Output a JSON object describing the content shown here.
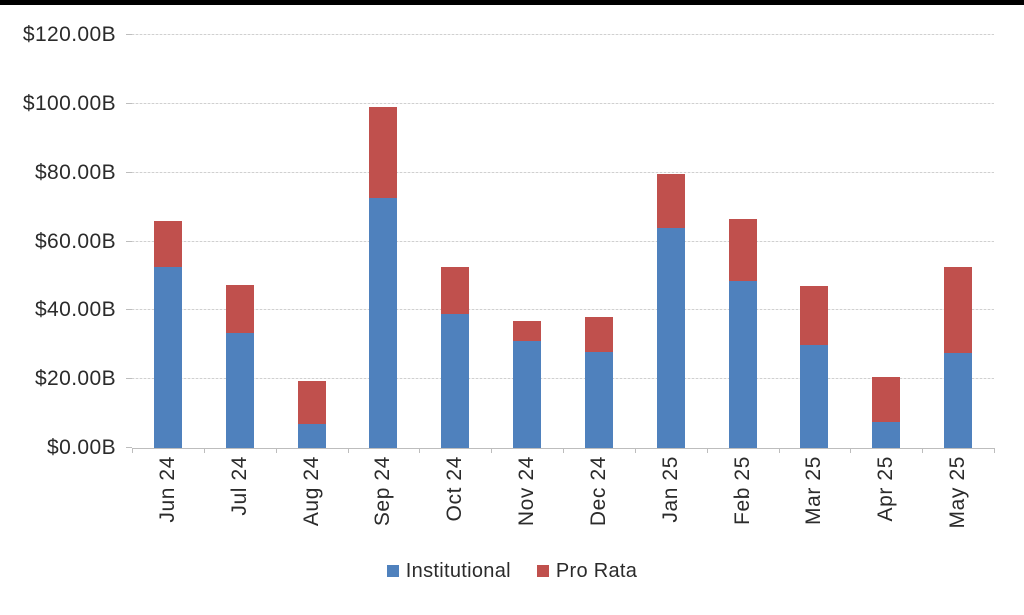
{
  "page": {
    "background": "#ffffff",
    "top_bar_color": "#000000"
  },
  "chart_data": {
    "type": "bar",
    "stacked": true,
    "title": "",
    "xlabel": "",
    "ylabel": "",
    "categories": [
      "Jun 24",
      "Jul 24",
      "Aug 24",
      "Sep 24",
      "Oct 24",
      "Nov 24",
      "Dec 24",
      "Jan 25",
      "Feb 25",
      "Mar 25",
      "Apr 25",
      "May 25"
    ],
    "series": [
      {
        "name": "Institutional",
        "color": "#4F81BD",
        "values": [
          52.5,
          33.5,
          7,
          72.5,
          39,
          31,
          28,
          64,
          48.5,
          30,
          7.5,
          27.5
        ]
      },
      {
        "name": "Pro Rata",
        "color": "#C0504D",
        "values": [
          13.5,
          14,
          12.5,
          26.5,
          13.5,
          6,
          10,
          15.5,
          18,
          17,
          13,
          25
        ]
      }
    ],
    "totals": [
      66,
      47.5,
      19.5,
      99,
      52.5,
      37,
      38,
      79.5,
      66.5,
      47,
      20.5,
      52.5
    ],
    "ylim": [
      0,
      120
    ],
    "y_ticks": [
      {
        "value": 0,
        "label": "$0.00B"
      },
      {
        "value": 20,
        "label": "$20.00B"
      },
      {
        "value": 40,
        "label": "$40.00B"
      },
      {
        "value": 60,
        "label": "$60.00B"
      },
      {
        "value": 80,
        "label": "$80.00B"
      },
      {
        "value": 100,
        "label": "$100.00B"
      },
      {
        "value": 120,
        "label": "$120.00B"
      }
    ],
    "grid": true,
    "gridline_color": "#d9d9d9",
    "axis_color": "#bfbfbf",
    "text_color": "#2b2b2b",
    "legend_position": "bottom",
    "x_label_rotation": -90
  }
}
